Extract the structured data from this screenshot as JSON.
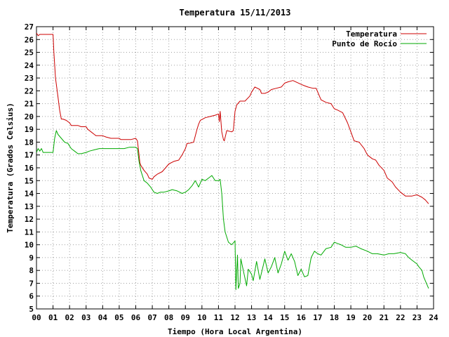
{
  "chart_data": {
    "type": "line",
    "title": "Temperatura 15/11/2013",
    "xlabel": "Tiempo (Hora Local Argentina)",
    "ylabel": "Temperatura (Grados Celsius)",
    "xlim": [
      0,
      24
    ],
    "ylim": [
      5,
      27
    ],
    "xticks": [
      "00",
      "01",
      "02",
      "03",
      "04",
      "05",
      "06",
      "07",
      "08",
      "09",
      "10",
      "11",
      "12",
      "13",
      "14",
      "15",
      "16",
      "17",
      "18",
      "19",
      "20",
      "21",
      "22",
      "23",
      "24"
    ],
    "yticks": [
      5,
      6,
      7,
      8,
      9,
      10,
      11,
      12,
      13,
      14,
      15,
      16,
      17,
      18,
      19,
      20,
      21,
      22,
      23,
      24,
      25,
      26,
      27
    ],
    "grid": true,
    "legend_position": "top-right",
    "series": [
      {
        "name": "Temperatura",
        "color": "#cc0000",
        "x": [
          0,
          0.1,
          0.2,
          0.5,
          1.0,
          1.05,
          1.15,
          1.3,
          1.4,
          1.5,
          1.6,
          1.8,
          2.0,
          2.1,
          2.5,
          2.7,
          3.0,
          3.1,
          3.3,
          3.5,
          3.6,
          3.9,
          4.0,
          4.2,
          4.5,
          4.8,
          5.0,
          5.1,
          5.4,
          5.7,
          6.0,
          6.1,
          6.2,
          6.25,
          6.3,
          6.5,
          6.7,
          6.8,
          7.0,
          7.1,
          7.3,
          7.6,
          7.8,
          8.0,
          8.3,
          8.6,
          8.8,
          9.0,
          9.1,
          9.2,
          9.5,
          9.7,
          9.8,
          9.9,
          10.2,
          10.5,
          10.8,
          11.0,
          11.05,
          11.1,
          11.2,
          11.3,
          11.35,
          11.5,
          11.8,
          11.9,
          12.0,
          12.1,
          12.3,
          12.6,
          12.9,
          13.0,
          13.2,
          13.5,
          13.6,
          13.8,
          14.0,
          14.2,
          14.5,
          14.8,
          15.0,
          15.2,
          15.5,
          16.0,
          16.2,
          16.4,
          16.7,
          16.9,
          17.0,
          17.2,
          17.5,
          17.8,
          18.0,
          18.2,
          18.5,
          18.8,
          19.0,
          19.2,
          19.5,
          19.8,
          20.0,
          20.3,
          20.5,
          20.7,
          21.0,
          21.2,
          21.5,
          21.7,
          22.0,
          22.3,
          22.5,
          22.7,
          23.0,
          23.3,
          23.5,
          23.7
        ],
        "y": [
          26.5,
          26.3,
          26.4,
          26.4,
          26.4,
          25.0,
          23.0,
          21.5,
          20.5,
          19.8,
          19.8,
          19.7,
          19.5,
          19.3,
          19.3,
          19.2,
          19.2,
          19.0,
          18.8,
          18.6,
          18.5,
          18.5,
          18.5,
          18.4,
          18.3,
          18.3,
          18.3,
          18.2,
          18.2,
          18.2,
          18.3,
          18.1,
          17.0,
          16.4,
          16.2,
          15.8,
          15.5,
          15.2,
          15.1,
          15.3,
          15.5,
          15.7,
          16.0,
          16.3,
          16.5,
          16.6,
          17.0,
          17.5,
          17.9,
          17.9,
          18.0,
          19.0,
          19.4,
          19.7,
          19.9,
          20.0,
          20.1,
          20.2,
          19.6,
          20.4,
          18.8,
          18.2,
          18.1,
          18.9,
          18.8,
          18.9,
          20.4,
          20.9,
          21.2,
          21.2,
          21.6,
          21.9,
          22.3,
          22.1,
          21.8,
          21.8,
          21.9,
          22.1,
          22.2,
          22.3,
          22.6,
          22.7,
          22.8,
          22.5,
          22.4,
          22.3,
          22.2,
          22.2,
          21.9,
          21.3,
          21.1,
          21.0,
          20.6,
          20.5,
          20.3,
          19.5,
          18.8,
          18.1,
          18.0,
          17.5,
          17.0,
          16.7,
          16.6,
          16.2,
          15.8,
          15.2,
          14.9,
          14.5,
          14.1,
          13.8,
          13.8,
          13.8,
          13.9,
          13.7,
          13.5,
          13.2
        ]
      },
      {
        "name": "Punto de Rocío",
        "color": "#00aa00",
        "x": [
          0,
          0.1,
          0.2,
          0.3,
          0.4,
          0.5,
          1.0,
          1.1,
          1.2,
          1.3,
          1.5,
          1.7,
          1.9,
          2.1,
          2.3,
          2.5,
          2.7,
          3.0,
          3.2,
          3.5,
          3.8,
          4.1,
          4.4,
          4.7,
          5.0,
          5.3,
          5.6,
          5.9,
          6.0,
          6.1,
          6.2,
          6.3,
          6.5,
          6.7,
          6.9,
          7.1,
          7.3,
          7.5,
          7.7,
          8.0,
          8.2,
          8.5,
          8.8,
          9.0,
          9.2,
          9.4,
          9.6,
          9.8,
          10.0,
          10.2,
          10.4,
          10.6,
          10.8,
          11.0,
          11.1,
          11.2,
          11.3,
          11.4,
          11.6,
          11.8,
          12.0,
          12.05,
          12.15,
          12.2,
          12.3,
          12.35,
          12.5,
          12.7,
          12.8,
          13.0,
          13.1,
          13.3,
          13.5,
          13.6,
          13.8,
          14.0,
          14.2,
          14.4,
          14.6,
          14.8,
          15.0,
          15.2,
          15.4,
          15.6,
          15.8,
          16.0,
          16.2,
          16.4,
          16.6,
          16.8,
          17.0,
          17.2,
          17.5,
          17.8,
          18.0,
          18.2,
          18.4,
          18.7,
          19.0,
          19.3,
          19.6,
          20.0,
          20.3,
          20.6,
          21.0,
          21.3,
          21.6,
          22.0,
          22.3,
          22.5,
          22.7,
          23.0,
          23.1,
          23.3,
          23.4,
          23.5,
          23.6,
          23.7
        ],
        "y": [
          17.2,
          17.5,
          17.3,
          17.5,
          17.2,
          17.2,
          17.2,
          18.3,
          18.9,
          18.6,
          18.3,
          18.0,
          17.9,
          17.5,
          17.3,
          17.1,
          17.1,
          17.2,
          17.3,
          17.4,
          17.5,
          17.5,
          17.5,
          17.5,
          17.5,
          17.5,
          17.6,
          17.6,
          17.6,
          17.5,
          16.5,
          15.8,
          15.0,
          14.8,
          14.5,
          14.1,
          14.0,
          14.1,
          14.1,
          14.2,
          14.3,
          14.2,
          14.0,
          14.1,
          14.3,
          14.6,
          15.0,
          14.5,
          15.1,
          15.0,
          15.2,
          15.4,
          15.0,
          15.0,
          15.1,
          14.0,
          12.0,
          11.0,
          10.2,
          10.0,
          10.3,
          6.5,
          9.2,
          6.6,
          7.0,
          8.9,
          8.0,
          6.8,
          8.1,
          7.7,
          7.2,
          8.7,
          7.3,
          7.8,
          8.9,
          7.8,
          8.3,
          9.0,
          7.8,
          8.5,
          9.5,
          8.8,
          9.3,
          8.7,
          7.6,
          8.1,
          7.5,
          7.6,
          9.0,
          9.5,
          9.3,
          9.2,
          9.7,
          9.8,
          10.2,
          10.1,
          10.0,
          9.8,
          9.8,
          9.9,
          9.7,
          9.5,
          9.3,
          9.3,
          9.2,
          9.3,
          9.3,
          9.4,
          9.3,
          9.0,
          8.8,
          8.5,
          8.3,
          8.0,
          7.5,
          7.2,
          6.9,
          6.6
        ]
      }
    ]
  }
}
